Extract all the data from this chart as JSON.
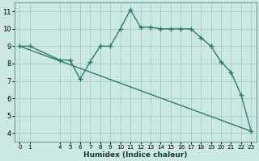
{
  "line1_x": [
    0,
    1,
    4,
    5,
    6,
    7,
    8,
    9,
    10,
    11,
    12,
    13,
    14,
    15,
    16,
    17,
    18,
    19,
    20,
    21,
    22,
    23
  ],
  "line1_y": [
    9.0,
    9.0,
    8.2,
    8.2,
    7.1,
    8.1,
    9.0,
    9.0,
    10.0,
    11.1,
    10.1,
    10.1,
    10.0,
    10.0,
    10.0,
    10.0,
    9.5,
    9.0,
    8.1,
    7.5,
    6.2,
    4.1
  ],
  "line2_x": [
    0,
    23
  ],
  "line2_y": [
    9.0,
    4.1
  ],
  "line_color": "#2d7a6a",
  "bg_color": "#cce8e4",
  "grid_color": "#aacfca",
  "xlabel": "Humidex (Indice chaleur)",
  "xticks": [
    0,
    1,
    4,
    5,
    6,
    7,
    8,
    9,
    10,
    11,
    12,
    13,
    14,
    15,
    16,
    17,
    18,
    19,
    20,
    21,
    22,
    23
  ],
  "yticks": [
    4,
    5,
    6,
    7,
    8,
    9,
    10,
    11
  ],
  "xlim": [
    -0.5,
    23.5
  ],
  "ylim": [
    3.5,
    11.5
  ],
  "marker": "+",
  "markersize": 4,
  "linewidth": 1.0
}
